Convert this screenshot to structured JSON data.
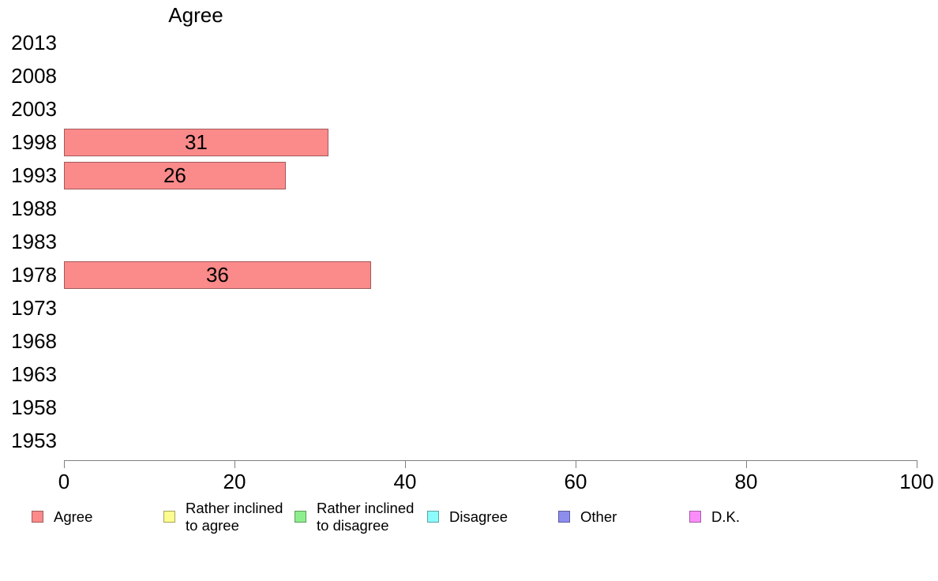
{
  "chart_data": {
    "type": "bar",
    "orientation": "horizontal",
    "title": "Agree",
    "categories": [
      "2013",
      "2008",
      "2003",
      "1998",
      "1993",
      "1988",
      "1983",
      "1978",
      "1973",
      "1968",
      "1963",
      "1958",
      "1953"
    ],
    "series": [
      {
        "name": "Agree",
        "values": [
          null,
          null,
          null,
          31,
          26,
          null,
          null,
          36,
          null,
          null,
          null,
          null,
          null
        ]
      }
    ],
    "bar_value_labels": [
      null,
      null,
      null,
      "31",
      "26",
      null,
      null,
      "36",
      null,
      null,
      null,
      null,
      null
    ],
    "xlabel": "",
    "ylabel": "",
    "xlim": [
      0,
      100
    ],
    "xticks": [
      "0",
      "20",
      "40",
      "60",
      "80",
      "100"
    ],
    "grid": false,
    "legend_position": "bottom",
    "colors": {
      "bar_fill": "#fb8a8a",
      "bar_border": "rgba(0,0,0,0.35)",
      "axis_line": "#808080",
      "text": "#000000",
      "background": "#ffffff"
    },
    "legend": [
      {
        "label_lines": [
          "Agree"
        ],
        "color": "#fb8a8a"
      },
      {
        "label_lines": [
          "Rather inclined",
          "to agree"
        ],
        "color": "#fdfd8f"
      },
      {
        "label_lines": [
          "Rather inclined",
          "to disagree"
        ],
        "color": "#8dee8d"
      },
      {
        "label_lines": [
          "Disagree"
        ],
        "color": "#8dfbfb"
      },
      {
        "label_lines": [
          "Other"
        ],
        "color": "#8d8dee"
      },
      {
        "label_lines": [
          "D.K."
        ],
        "color": "#fb8dfb"
      }
    ]
  }
}
